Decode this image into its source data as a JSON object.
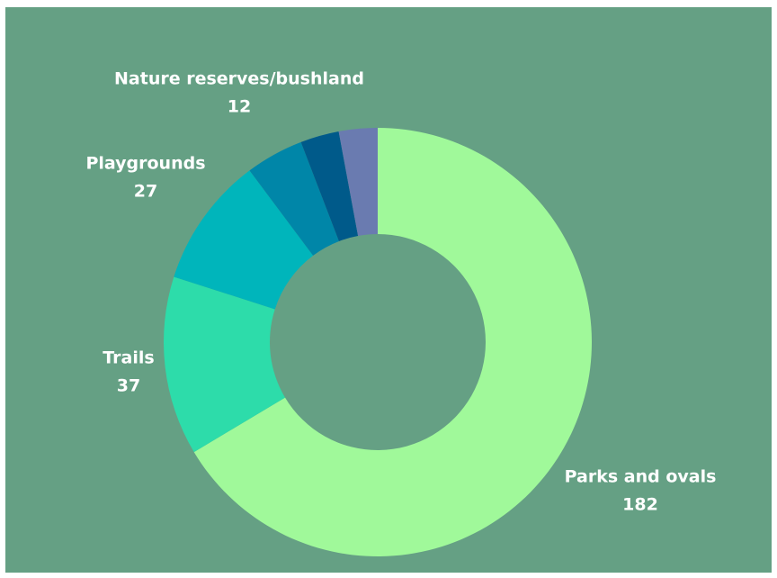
{
  "chart_data": {
    "type": "pie",
    "categories": [
      "Parks and ovals",
      "Trails",
      "Playgrounds",
      "Nature reserves/bushland",
      null,
      null
    ],
    "values": [
      182,
      37,
      27,
      12,
      8,
      8
    ],
    "colors": [
      "#a0f99a",
      "#2ddcaa",
      "#00b5bb",
      "#0086a8",
      "#005a8a",
      "#6a7bb0"
    ]
  }
}
